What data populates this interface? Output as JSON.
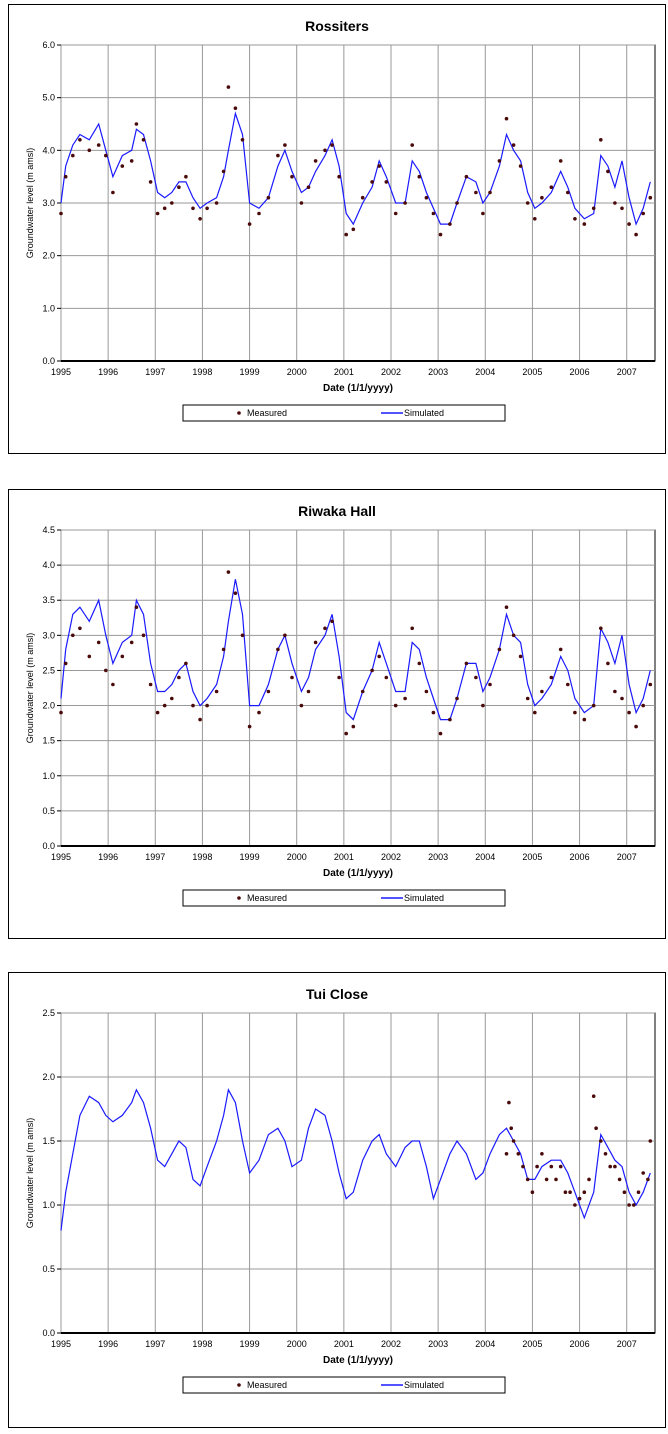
{
  "charts": [
    {
      "title": "Rossiters",
      "ylabel": "Groundwater level (m amsl)",
      "xlabel": "Date (1/1/yyyy)",
      "legend": {
        "measured": "Measured",
        "simulated": "Simulated"
      }
    },
    {
      "title": "Riwaka Hall",
      "ylabel": "Groundwater level (m amsl)",
      "xlabel": "Date (1/1/yyyy)",
      "legend": {
        "measured": "Measured",
        "simulated": "Simulated"
      }
    },
    {
      "title": "Tui Close",
      "ylabel": "Groundwater level (m amsl)",
      "xlabel": "Date (1/1/yyyy)",
      "legend": {
        "measured": "Measured",
        "simulated": "Simulated"
      }
    }
  ],
  "chart_data": [
    {
      "type": "line",
      "title": "Rossiters",
      "xlabel": "Date (1/1/yyyy)",
      "ylabel": "Groundwater level (m amsl)",
      "xlim": [
        1995,
        2007.6
      ],
      "ylim": [
        0,
        6
      ],
      "x_ticks": [
        "1995",
        "1996",
        "1997",
        "1998",
        "1999",
        "2000",
        "2001",
        "2002",
        "2003",
        "2004",
        "2005",
        "2006",
        "2007"
      ],
      "y_ticks": [
        "0.0",
        "1.0",
        "2.0",
        "3.0",
        "4.0",
        "5.0",
        "6.0"
      ],
      "grid": true,
      "legend_position": "bottom",
      "colors": {
        "measured": "#4a0a0a",
        "simulated": "#1a1aff"
      },
      "series": [
        {
          "name": "Measured",
          "style": "points",
          "x": [
            1995.0,
            1995.1,
            1995.25,
            1995.4,
            1995.6,
            1995.8,
            1995.95,
            1996.1,
            1996.3,
            1996.5,
            1996.6,
            1996.75,
            1996.9,
            1997.05,
            1997.2,
            1997.35,
            1997.5,
            1997.65,
            1997.8,
            1997.95,
            1998.1,
            1998.3,
            1998.45,
            1998.55,
            1998.7,
            1998.85,
            1999.0,
            1999.2,
            1999.4,
            1999.6,
            1999.75,
            1999.9,
            2000.1,
            2000.25,
            2000.4,
            2000.6,
            2000.75,
            2000.9,
            2001.05,
            2001.2,
            2001.4,
            2001.6,
            2001.75,
            2001.9,
            2002.1,
            2002.3,
            2002.45,
            2002.6,
            2002.75,
            2002.9,
            2003.05,
            2003.25,
            2003.4,
            2003.6,
            2003.8,
            2003.95,
            2004.1,
            2004.3,
            2004.45,
            2004.6,
            2004.75,
            2004.9,
            2005.05,
            2005.2,
            2005.4,
            2005.6,
            2005.75,
            2005.9,
            2006.1,
            2006.3,
            2006.45,
            2006.6,
            2006.75,
            2006.9,
            2007.05,
            2007.2,
            2007.35,
            2007.5
          ],
          "y": [
            2.8,
            3.5,
            3.9,
            4.2,
            4.0,
            4.1,
            3.9,
            3.2,
            3.7,
            3.8,
            4.5,
            4.2,
            3.4,
            2.8,
            2.9,
            3.0,
            3.3,
            3.5,
            2.9,
            2.7,
            2.9,
            3.0,
            3.6,
            5.2,
            4.8,
            4.2,
            2.6,
            2.8,
            3.1,
            3.9,
            4.1,
            3.5,
            3.0,
            3.3,
            3.8,
            4.0,
            4.1,
            3.5,
            2.4,
            2.5,
            3.1,
            3.4,
            3.7,
            3.4,
            2.8,
            3.0,
            4.1,
            3.5,
            3.1,
            2.8,
            2.4,
            2.6,
            3.0,
            3.5,
            3.2,
            2.8,
            3.2,
            3.8,
            4.6,
            4.1,
            3.7,
            3.0,
            2.7,
            3.1,
            3.3,
            3.8,
            3.2,
            2.7,
            2.6,
            2.9,
            4.2,
            3.6,
            3.0,
            2.9,
            2.6,
            2.4,
            2.8,
            3.1
          ]
        },
        {
          "name": "Simulated",
          "style": "line",
          "x": [
            1995.0,
            1995.1,
            1995.25,
            1995.4,
            1995.6,
            1995.8,
            1995.95,
            1996.1,
            1996.3,
            1996.5,
            1996.6,
            1996.75,
            1996.9,
            1997.05,
            1997.2,
            1997.35,
            1997.5,
            1997.65,
            1997.8,
            1997.95,
            1998.1,
            1998.3,
            1998.45,
            1998.55,
            1998.7,
            1998.85,
            1999.0,
            1999.2,
            1999.4,
            1999.6,
            1999.75,
            1999.9,
            2000.1,
            2000.25,
            2000.4,
            2000.6,
            2000.75,
            2000.9,
            2001.05,
            2001.2,
            2001.4,
            2001.6,
            2001.75,
            2001.9,
            2002.1,
            2002.3,
            2002.45,
            2002.6,
            2002.75,
            2002.9,
            2003.05,
            2003.25,
            2003.4,
            2003.6,
            2003.8,
            2003.95,
            2004.1,
            2004.3,
            2004.45,
            2004.6,
            2004.75,
            2004.9,
            2005.05,
            2005.2,
            2005.4,
            2005.6,
            2005.75,
            2005.9,
            2006.1,
            2006.3,
            2006.45,
            2006.6,
            2006.75,
            2006.9,
            2007.05,
            2007.2,
            2007.35,
            2007.5
          ],
          "y": [
            3.0,
            3.7,
            4.1,
            4.3,
            4.2,
            4.5,
            4.0,
            3.5,
            3.9,
            4.0,
            4.4,
            4.3,
            3.8,
            3.2,
            3.1,
            3.2,
            3.4,
            3.4,
            3.1,
            2.9,
            3.0,
            3.1,
            3.5,
            4.0,
            4.7,
            4.3,
            3.0,
            2.9,
            3.1,
            3.7,
            4.0,
            3.6,
            3.2,
            3.3,
            3.6,
            3.9,
            4.2,
            3.7,
            2.8,
            2.6,
            3.0,
            3.3,
            3.8,
            3.5,
            3.0,
            3.0,
            3.8,
            3.6,
            3.2,
            2.9,
            2.6,
            2.6,
            3.0,
            3.5,
            3.4,
            3.0,
            3.2,
            3.7,
            4.3,
            4.0,
            3.8,
            3.2,
            2.9,
            3.0,
            3.2,
            3.6,
            3.3,
            2.9,
            2.7,
            2.8,
            3.9,
            3.7,
            3.3,
            3.8,
            3.1,
            2.6,
            2.9,
            3.4
          ]
        }
      ]
    },
    {
      "type": "line",
      "title": "Riwaka Hall",
      "xlabel": "Date (1/1/yyyy)",
      "ylabel": "Groundwater level (m amsl)",
      "xlim": [
        1995,
        2007.6
      ],
      "ylim": [
        0,
        4.5
      ],
      "x_ticks": [
        "1995",
        "1996",
        "1997",
        "1998",
        "1999",
        "2000",
        "2001",
        "2002",
        "2003",
        "2004",
        "2005",
        "2006",
        "2007"
      ],
      "y_ticks": [
        "0.0",
        "0.5",
        "1.0",
        "1.5",
        "2.0",
        "2.5",
        "3.0",
        "3.5",
        "4.0",
        "4.5"
      ],
      "grid": true,
      "legend_position": "bottom",
      "colors": {
        "measured": "#4a0a0a",
        "simulated": "#1a1aff"
      },
      "series": [
        {
          "name": "Measured",
          "style": "points",
          "x": [
            1995.0,
            1995.1,
            1995.25,
            1995.4,
            1995.6,
            1995.8,
            1995.95,
            1996.1,
            1996.3,
            1996.5,
            1996.6,
            1996.75,
            1996.9,
            1997.05,
            1997.2,
            1997.35,
            1997.5,
            1997.65,
            1997.8,
            1997.95,
            1998.1,
            1998.3,
            1998.45,
            1998.55,
            1998.7,
            1998.85,
            1999.0,
            1999.2,
            1999.4,
            1999.6,
            1999.75,
            1999.9,
            2000.1,
            2000.25,
            2000.4,
            2000.6,
            2000.75,
            2000.9,
            2001.05,
            2001.2,
            2001.4,
            2001.6,
            2001.75,
            2001.9,
            2002.1,
            2002.3,
            2002.45,
            2002.6,
            2002.75,
            2002.9,
            2003.05,
            2003.25,
            2003.4,
            2003.6,
            2003.8,
            2003.95,
            2004.1,
            2004.3,
            2004.45,
            2004.6,
            2004.75,
            2004.9,
            2005.05,
            2005.2,
            2005.4,
            2005.6,
            2005.75,
            2005.9,
            2006.1,
            2006.3,
            2006.45,
            2006.6,
            2006.75,
            2006.9,
            2007.05,
            2007.2,
            2007.35,
            2007.5
          ],
          "y": [
            1.9,
            2.6,
            3.0,
            3.1,
            2.7,
            2.9,
            2.5,
            2.3,
            2.7,
            2.9,
            3.4,
            3.0,
            2.3,
            1.9,
            2.0,
            2.1,
            2.4,
            2.6,
            2.0,
            1.8,
            2.0,
            2.2,
            2.8,
            3.9,
            3.6,
            3.0,
            1.7,
            1.9,
            2.2,
            2.8,
            3.0,
            2.4,
            2.0,
            2.2,
            2.9,
            3.1,
            3.2,
            2.4,
            1.6,
            1.7,
            2.2,
            2.5,
            2.7,
            2.4,
            2.0,
            2.1,
            3.1,
            2.6,
            2.2,
            1.9,
            1.6,
            1.8,
            2.1,
            2.6,
            2.4,
            2.0,
            2.3,
            2.8,
            3.4,
            3.0,
            2.7,
            2.1,
            1.9,
            2.2,
            2.4,
            2.8,
            2.3,
            1.9,
            1.8,
            2.0,
            3.1,
            2.6,
            2.2,
            2.1,
            1.9,
            1.7,
            2.0,
            2.3
          ]
        },
        {
          "name": "Simulated",
          "style": "line",
          "x": [
            1995.0,
            1995.1,
            1995.25,
            1995.4,
            1995.6,
            1995.8,
            1995.95,
            1996.1,
            1996.3,
            1996.5,
            1996.6,
            1996.75,
            1996.9,
            1997.05,
            1997.2,
            1997.35,
            1997.5,
            1997.65,
            1997.8,
            1997.95,
            1998.1,
            1998.3,
            1998.45,
            1998.55,
            1998.7,
            1998.85,
            1999.0,
            1999.2,
            1999.4,
            1999.6,
            1999.75,
            1999.9,
            2000.1,
            2000.25,
            2000.4,
            2000.6,
            2000.75,
            2000.9,
            2001.05,
            2001.2,
            2001.4,
            2001.6,
            2001.75,
            2001.9,
            2002.1,
            2002.3,
            2002.45,
            2002.6,
            2002.75,
            2002.9,
            2003.05,
            2003.25,
            2003.4,
            2003.6,
            2003.8,
            2003.95,
            2004.1,
            2004.3,
            2004.45,
            2004.6,
            2004.75,
            2004.9,
            2005.05,
            2005.2,
            2005.4,
            2005.6,
            2005.75,
            2005.9,
            2006.1,
            2006.3,
            2006.45,
            2006.6,
            2006.75,
            2006.9,
            2007.05,
            2007.2,
            2007.35,
            2007.5
          ],
          "y": [
            2.1,
            2.8,
            3.3,
            3.4,
            3.2,
            3.5,
            3.0,
            2.6,
            2.9,
            3.0,
            3.5,
            3.3,
            2.6,
            2.2,
            2.2,
            2.3,
            2.5,
            2.6,
            2.2,
            2.0,
            2.1,
            2.3,
            2.7,
            3.2,
            3.8,
            3.3,
            2.0,
            2.0,
            2.3,
            2.8,
            3.0,
            2.6,
            2.2,
            2.4,
            2.8,
            3.0,
            3.3,
            2.7,
            1.9,
            1.8,
            2.2,
            2.5,
            2.9,
            2.6,
            2.2,
            2.2,
            2.9,
            2.8,
            2.4,
            2.1,
            1.8,
            1.8,
            2.1,
            2.6,
            2.6,
            2.2,
            2.4,
            2.8,
            3.3,
            3.0,
            2.9,
            2.3,
            2.0,
            2.1,
            2.3,
            2.7,
            2.5,
            2.1,
            1.9,
            2.0,
            3.1,
            2.9,
            2.6,
            3.0,
            2.3,
            1.9,
            2.1,
            2.5
          ]
        }
      ]
    },
    {
      "type": "line",
      "title": "Tui Close",
      "xlabel": "Date (1/1/yyyy)",
      "ylabel": "Groundwater level (m amsl)",
      "xlim": [
        1995,
        2007.6
      ],
      "ylim": [
        0,
        2.5
      ],
      "x_ticks": [
        "1995",
        "1996",
        "1997",
        "1998",
        "1999",
        "2000",
        "2001",
        "2002",
        "2003",
        "2004",
        "2005",
        "2006",
        "2007"
      ],
      "y_ticks": [
        "0.0",
        "0.5",
        "1.0",
        "1.5",
        "2.0",
        "2.5"
      ],
      "grid": true,
      "legend_position": "bottom",
      "colors": {
        "measured": "#4a0a0a",
        "simulated": "#1a1aff"
      },
      "series": [
        {
          "name": "Measured",
          "style": "points",
          "x": [
            2004.45,
            2004.5,
            2004.55,
            2004.6,
            2004.7,
            2004.8,
            2004.9,
            2005.0,
            2005.1,
            2005.2,
            2005.3,
            2005.4,
            2005.5,
            2005.6,
            2005.7,
            2005.8,
            2005.9,
            2006.0,
            2006.1,
            2006.2,
            2006.3,
            2006.35,
            2006.45,
            2006.55,
            2006.65,
            2006.75,
            2006.85,
            2006.95,
            2007.05,
            2007.15,
            2007.25,
            2007.35,
            2007.45,
            2007.5
          ],
          "y": [
            1.4,
            1.8,
            1.6,
            1.5,
            1.4,
            1.3,
            1.2,
            1.1,
            1.3,
            1.4,
            1.2,
            1.3,
            1.2,
            1.3,
            1.1,
            1.1,
            1.0,
            1.05,
            1.1,
            1.2,
            1.85,
            1.6,
            1.5,
            1.4,
            1.3,
            1.3,
            1.2,
            1.1,
            1.0,
            1.0,
            1.1,
            1.25,
            1.2,
            1.5
          ]
        },
        {
          "name": "Simulated",
          "style": "line",
          "x": [
            1995.0,
            1995.1,
            1995.25,
            1995.4,
            1995.6,
            1995.8,
            1995.95,
            1996.1,
            1996.3,
            1996.5,
            1996.6,
            1996.75,
            1996.9,
            1997.05,
            1997.2,
            1997.35,
            1997.5,
            1997.65,
            1997.8,
            1997.95,
            1998.1,
            1998.3,
            1998.45,
            1998.55,
            1998.7,
            1998.85,
            1999.0,
            1999.2,
            1999.4,
            1999.6,
            1999.75,
            1999.9,
            2000.1,
            2000.25,
            2000.4,
            2000.6,
            2000.75,
            2000.9,
            2001.05,
            2001.2,
            2001.4,
            2001.6,
            2001.75,
            2001.9,
            2002.1,
            2002.3,
            2002.45,
            2002.6,
            2002.75,
            2002.9,
            2003.05,
            2003.25,
            2003.4,
            2003.6,
            2003.8,
            2003.95,
            2004.1,
            2004.3,
            2004.45,
            2004.6,
            2004.75,
            2004.9,
            2005.05,
            2005.2,
            2005.4,
            2005.6,
            2005.75,
            2005.9,
            2006.1,
            2006.3,
            2006.45,
            2006.6,
            2006.75,
            2006.9,
            2007.05,
            2007.2,
            2007.35,
            2007.5
          ],
          "y": [
            0.8,
            1.1,
            1.4,
            1.7,
            1.85,
            1.8,
            1.7,
            1.65,
            1.7,
            1.8,
            1.9,
            1.8,
            1.6,
            1.35,
            1.3,
            1.4,
            1.5,
            1.45,
            1.2,
            1.15,
            1.3,
            1.5,
            1.7,
            1.9,
            1.8,
            1.5,
            1.25,
            1.35,
            1.55,
            1.6,
            1.5,
            1.3,
            1.35,
            1.6,
            1.75,
            1.7,
            1.5,
            1.25,
            1.05,
            1.1,
            1.35,
            1.5,
            1.55,
            1.4,
            1.3,
            1.45,
            1.5,
            1.5,
            1.3,
            1.05,
            1.2,
            1.4,
            1.5,
            1.4,
            1.2,
            1.25,
            1.4,
            1.55,
            1.6,
            1.5,
            1.4,
            1.2,
            1.2,
            1.3,
            1.35,
            1.35,
            1.25,
            1.1,
            0.9,
            1.1,
            1.55,
            1.45,
            1.35,
            1.3,
            1.1,
            1.0,
            1.1,
            1.25
          ]
        }
      ]
    }
  ]
}
